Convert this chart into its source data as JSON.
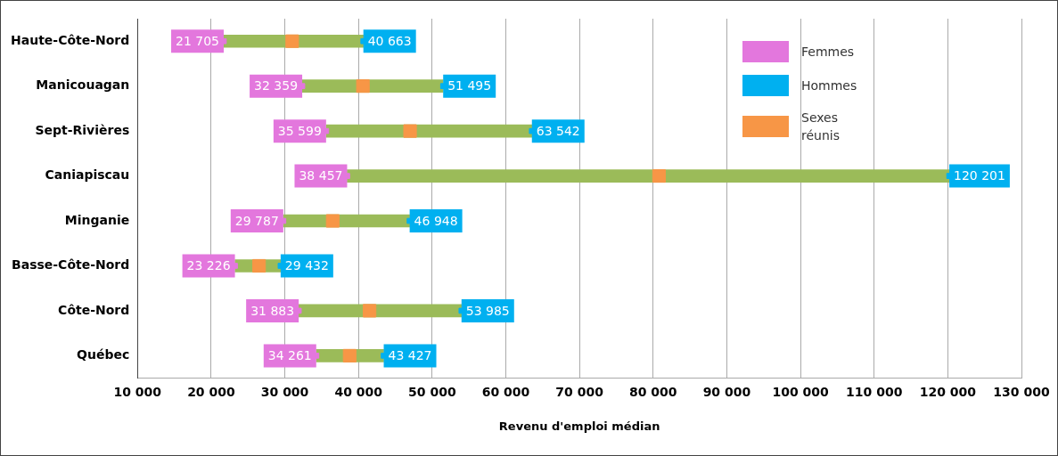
{
  "chart_data": {
    "type": "bar",
    "orientation": "horizontal",
    "xlabel": "Revenu d'emploi médian",
    "categories": [
      "Haute-Côte-Nord",
      "Manicouagan",
      "Sept-Rivières",
      "Caniapiscau",
      "Minganie",
      "Basse-Côte-Nord",
      "Côte-Nord",
      "Québec"
    ],
    "series": [
      {
        "color": "#9bbb59",
        "base": [
          21705,
          32359,
          35599,
          38457,
          29787,
          23226,
          31883,
          34261
        ],
        "values": [
          18958,
          19136,
          27943,
          81744,
          17161,
          6206,
          22102,
          9166
        ]
      },
      {
        "type": "scatter",
        "name": "Femmes",
        "color": "#e377dd",
        "marker": "square",
        "values": [
          21705,
          32359,
          35599,
          38457,
          29787,
          23226,
          31883,
          34261
        ],
        "value_labels": [
          "21 705",
          "32 359",
          "35 599",
          "38 457",
          "29 787",
          "23 226",
          "31 883",
          "34 261"
        ]
      },
      {
        "type": "scatter",
        "name": "Hommes",
        "color": "#00b0f0",
        "marker": "square",
        "values": [
          40663,
          51495,
          63542,
          120201,
          46948,
          29432,
          53985,
          43427
        ],
        "value_labels": [
          "40 663",
          "51 495",
          "63 542",
          "120 201",
          "46 948",
          "29 432",
          "53 985",
          "43 427"
        ]
      },
      {
        "type": "scatter",
        "name": "Sexes réunis",
        "color": "#f79646",
        "marker": "square",
        "values": [
          31000,
          40600,
          47000,
          80800,
          36500,
          26500,
          41500,
          38800
        ]
      }
    ],
    "xlim": [
      10000,
      130000
    ],
    "xticks": [
      {
        "value": 10000,
        "label": "10 000"
      },
      {
        "value": 20000,
        "label": "20 000"
      },
      {
        "value": 30000,
        "label": "30 000"
      },
      {
        "value": 40000,
        "label": "40 000"
      },
      {
        "value": 50000,
        "label": "50 000"
      },
      {
        "value": 60000,
        "label": "60 000"
      },
      {
        "value": 70000,
        "label": "70 000"
      },
      {
        "value": 80000,
        "label": "80 000"
      },
      {
        "value": 90000,
        "label": "90 000"
      },
      {
        "value": 100000,
        "label": "100 000"
      },
      {
        "value": 110000,
        "label": "110 000"
      },
      {
        "value": 120000,
        "label": "120 000"
      },
      {
        "value": 130000,
        "label": "130 000"
      }
    ],
    "grid": "x",
    "legend": "top right"
  }
}
